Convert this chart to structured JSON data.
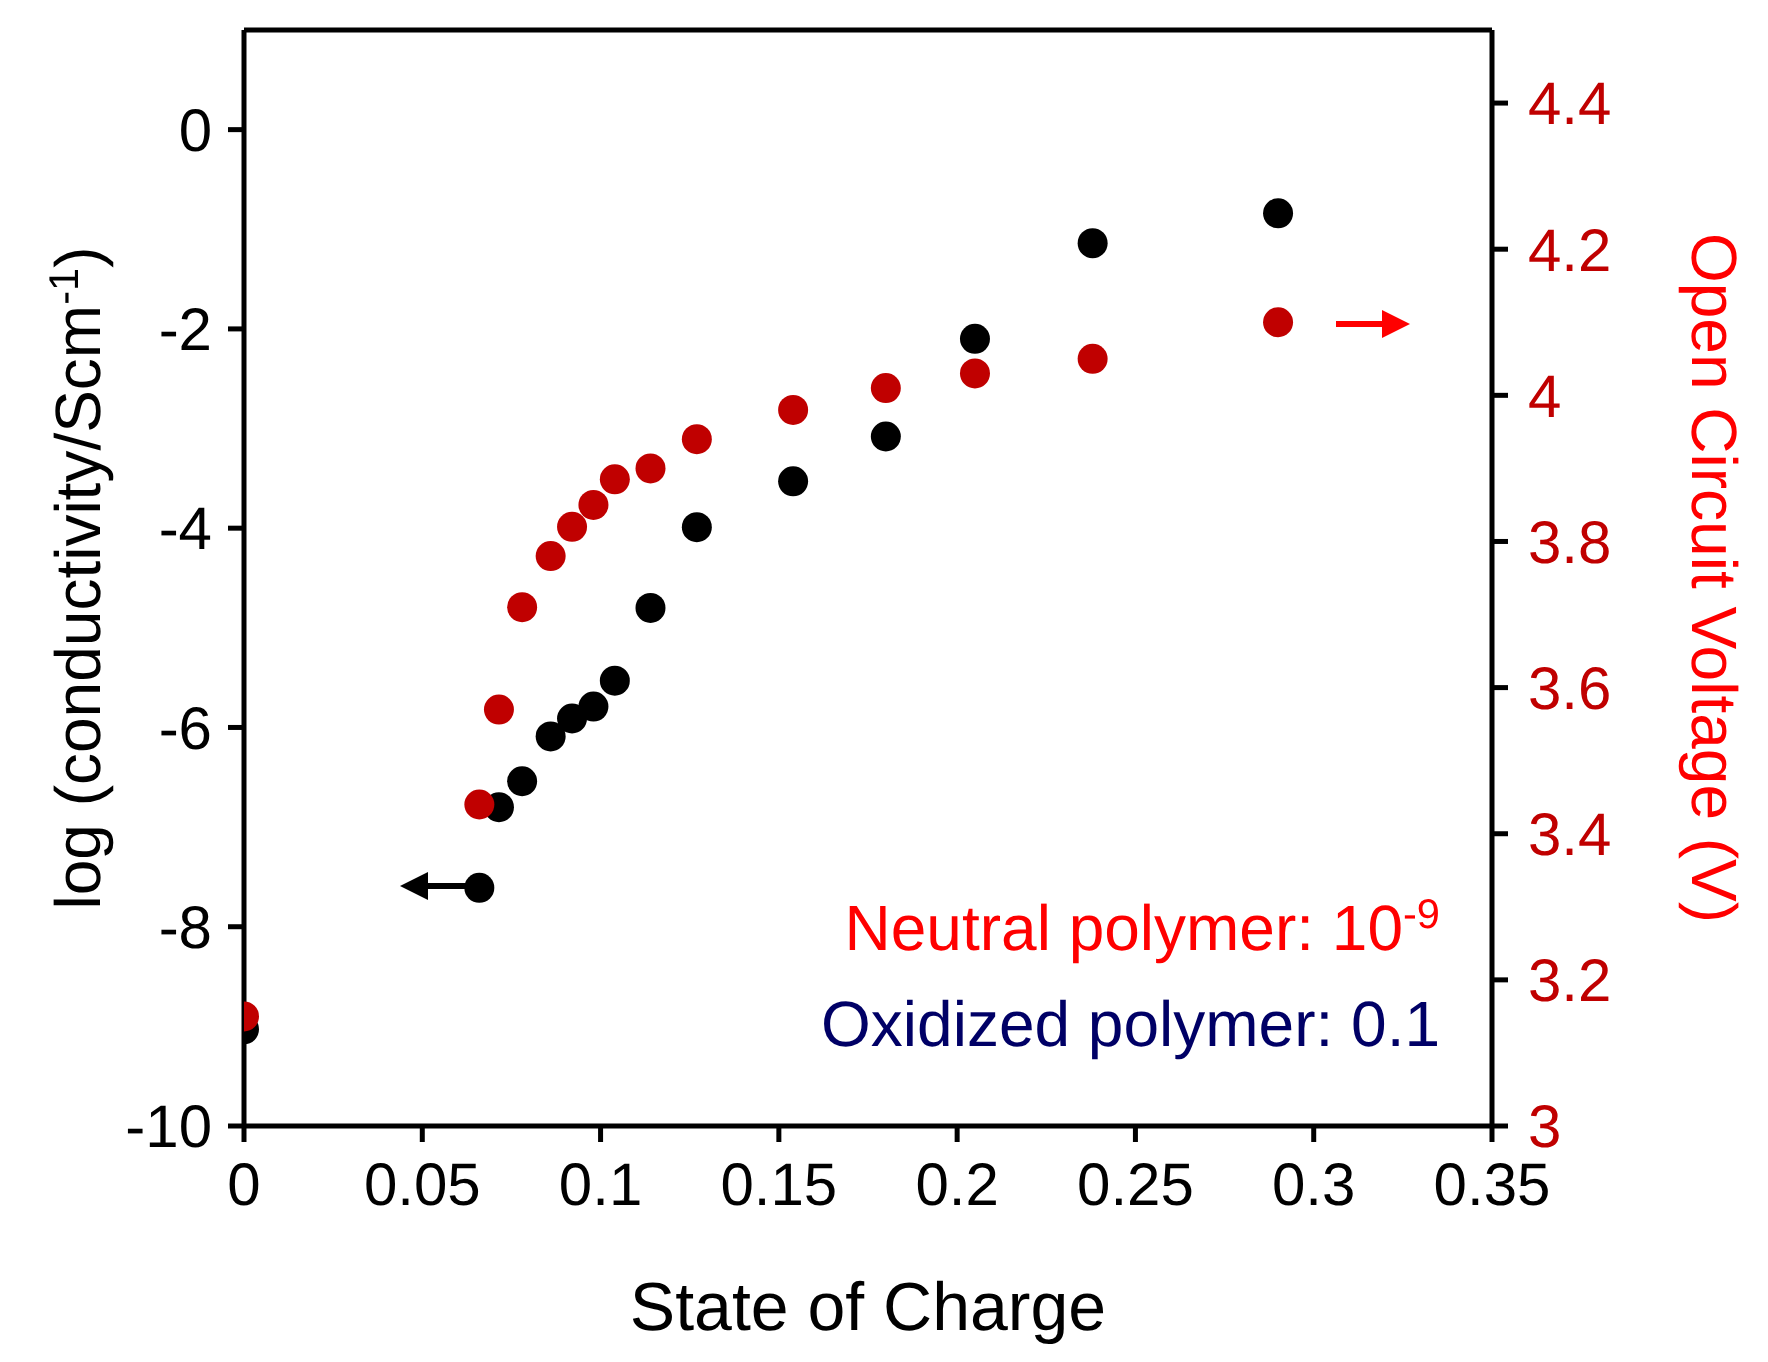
{
  "chart_data": {
    "type": "scatter",
    "xlabel": "State of Charge",
    "ylabel": "log (conductivity/Scm$^{-1}$)",
    "y2label": "Open Circuit Voltage (V)",
    "xlim": [
      0,
      0.35
    ],
    "xticks": [
      0,
      0.05,
      0.1,
      0.15,
      0.2,
      0.25,
      0.3,
      0.35
    ],
    "ylim": [
      -10,
      1
    ],
    "yticks": [
      -10,
      -8,
      -6,
      -4,
      -2,
      0
    ],
    "y2lim": [
      3,
      4.5
    ],
    "y2ticks": [
      3,
      3.2,
      3.4,
      3.6,
      3.8,
      4,
      4.2,
      4.4
    ],
    "marker": "circle",
    "annotations": [
      "Neutral polymer: 10$^{-9}$",
      "Oxidized polymer: 0.1"
    ],
    "series": [
      {
        "color": "#000000",
        "x": [
          0,
          0.066,
          0.0715,
          0.078,
          0.086,
          0.092,
          0.098,
          0.104,
          0.114,
          0.127,
          0.154,
          0.18,
          0.205,
          0.238,
          0.29
        ],
        "values": [
          -9.03,
          -7.61,
          -6.8,
          -6.54,
          -6.09,
          -5.91,
          -5.79,
          -5.53,
          -4.8,
          -3.99,
          -3.53,
          -3.08,
          -2.1,
          -1.14,
          -0.84
        ]
      },
      {
        "color": "#c00000",
        "axis": "y2",
        "x": [
          0,
          0.066,
          0.0715,
          0.078,
          0.086,
          0.092,
          0.098,
          0.104,
          0.114,
          0.127,
          0.154,
          0.18,
          0.205,
          0.238,
          0.29
        ],
        "values": [
          3.15,
          3.44,
          3.57,
          3.71,
          3.78,
          3.82,
          3.85,
          3.885,
          3.9,
          3.94,
          3.98,
          4.01,
          4.03,
          4.05,
          4.1
        ]
      }
    ]
  }
}
